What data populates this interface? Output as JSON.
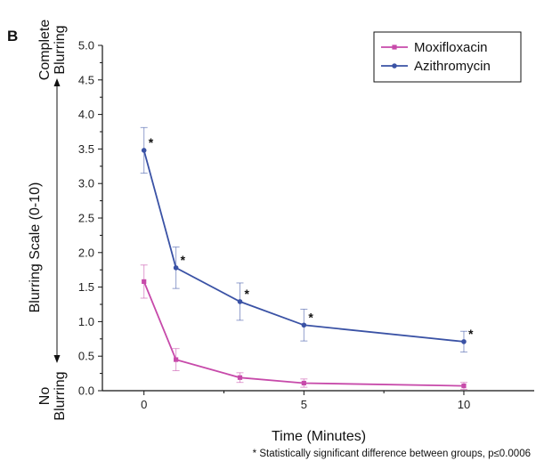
{
  "panel_label": "B",
  "footnote": "*  Statistically significant difference between groups, p≤0.0006",
  "scale_annotations": {
    "top_line1": "Complete",
    "top_line2": "Blurring",
    "bottom_line1": "No",
    "bottom_line2": "Blurring"
  },
  "chart_data": {
    "type": "line",
    "xlabel": "Time (Minutes)",
    "ylabel": "Blurring Scale (0-10)",
    "xlim": [
      -1.3,
      12.2
    ],
    "ylim": [
      0,
      5
    ],
    "xticks": [
      0,
      5,
      10
    ],
    "yticks": [
      0.0,
      0.5,
      1.0,
      1.5,
      2.0,
      2.5,
      3.0,
      3.5,
      4.0,
      4.5,
      5.0
    ],
    "x": [
      0,
      1,
      3,
      5,
      10
    ],
    "grid": false,
    "legend_position": "top-right",
    "significance_marker": "*",
    "series": [
      {
        "name": "Moxifloxacin",
        "color": "#c74aaa",
        "marker": "square",
        "values": [
          1.58,
          0.45,
          0.19,
          0.11,
          0.07
        ],
        "error": [
          0.24,
          0.16,
          0.07,
          0.06,
          0.05
        ]
      },
      {
        "name": "Azithromycin",
        "color": "#3a52a5",
        "marker": "circle",
        "values": [
          3.48,
          1.78,
          1.29,
          0.95,
          0.71
        ],
        "error": [
          0.33,
          0.3,
          0.27,
          0.23,
          0.15
        ],
        "significant": [
          true,
          true,
          true,
          true,
          true
        ]
      }
    ]
  }
}
